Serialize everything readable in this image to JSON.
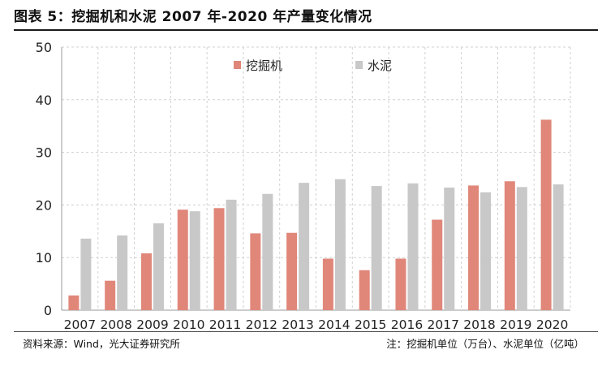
{
  "figure": {
    "title": "图表 5：挖掘机和水泥 2007 年-2020 年产量变化情况",
    "source": "资料来源：Wind，光大证券研究所",
    "units_note": "注：挖掘机单位（万台）、水泥单位（亿吨）"
  },
  "colors": {
    "excavator": "#e0877a",
    "cement": "#c8c8c8",
    "grid": "#d0d0d0",
    "axis": "#999999"
  },
  "chart_data": {
    "type": "bar",
    "categories": [
      "2007",
      "2008",
      "2009",
      "2010",
      "2011",
      "2012",
      "2013",
      "2014",
      "2015",
      "2016",
      "2017",
      "2018",
      "2019",
      "2020"
    ],
    "series": [
      {
        "name": "挖掘机",
        "values": [
          2.8,
          5.6,
          10.8,
          19.1,
          19.4,
          14.6,
          14.7,
          9.8,
          7.6,
          9.8,
          17.2,
          23.7,
          24.5,
          36.2
        ]
      },
      {
        "name": "水泥",
        "values": [
          13.6,
          14.2,
          16.5,
          18.8,
          21.0,
          22.1,
          24.2,
          24.9,
          23.6,
          24.1,
          23.3,
          22.4,
          23.4,
          23.9
        ]
      }
    ],
    "ylim": [
      0,
      50
    ],
    "yticks": [
      0,
      10,
      20,
      30,
      40,
      50
    ],
    "grid": true,
    "legend": "top-center"
  }
}
